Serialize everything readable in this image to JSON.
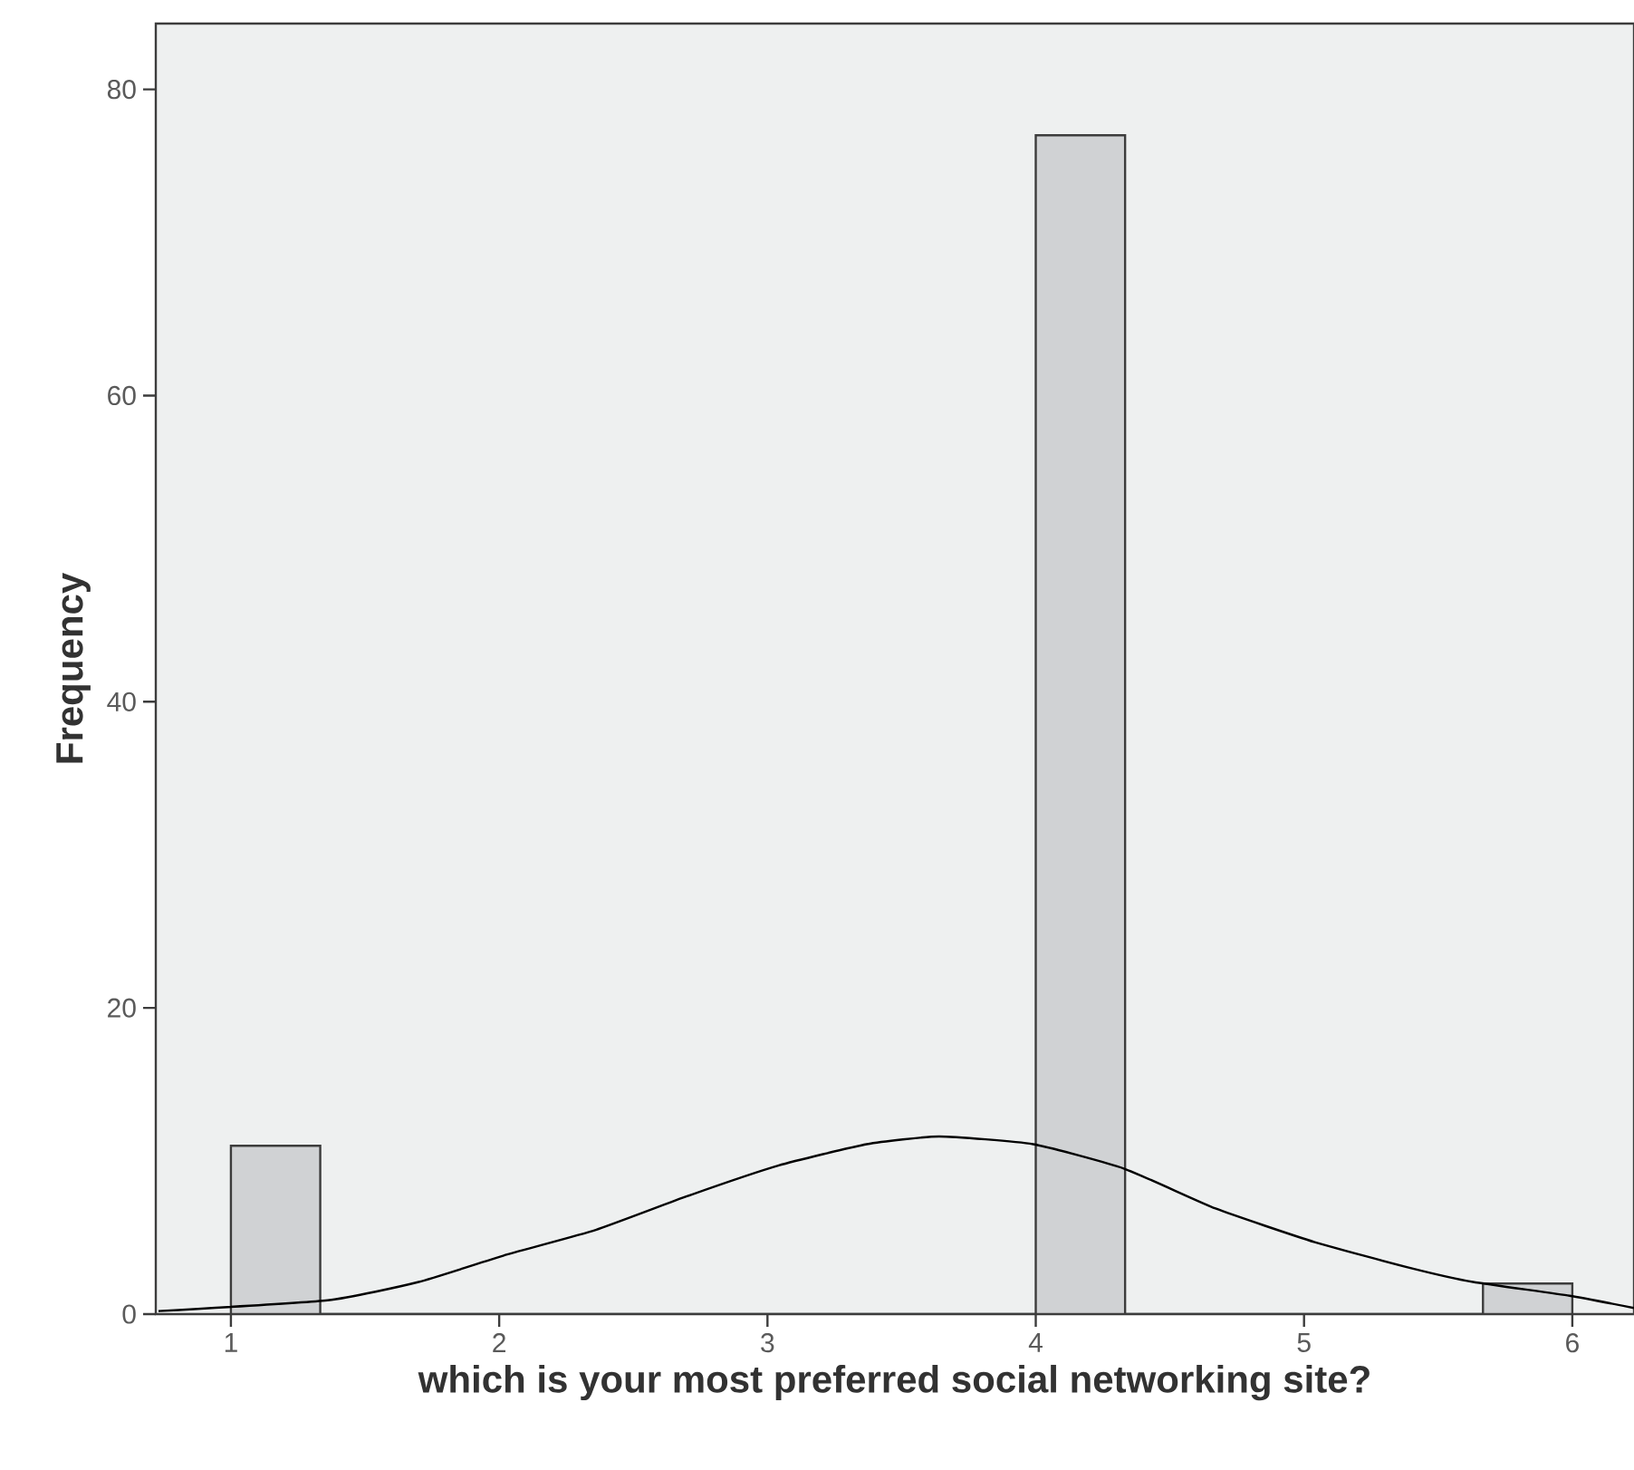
{
  "chart_data": {
    "type": "histogram",
    "xlabel": "which is your most preferred social networking site?",
    "ylabel": "Frequency",
    "bins": [
      1,
      1.333,
      1.667,
      2,
      2.333,
      2.667,
      3,
      3.333,
      3.667,
      4,
      4.333,
      4.667,
      5,
      5.333,
      5.667,
      6
    ],
    "series": [
      {
        "color": "#d0d2d4",
        "values": [
          11,
          0,
          0,
          0,
          0,
          0,
          0,
          0,
          0,
          77,
          0,
          0,
          0,
          0,
          2
        ]
      },
      {
        "type": "line",
        "color": "#000000",
        "x": [
          0.73,
          1.36,
          1.7,
          2.03,
          2.36,
          2.7,
          3.04,
          3.37,
          3.64,
          3.99,
          4.33,
          4.67,
          5.04,
          5.4,
          5.63,
          5.99,
          6.23
        ],
        "values": [
          0.2,
          0.9,
          2.1,
          3.9,
          5.5,
          7.7,
          9.7,
          11.1,
          11.6,
          11.1,
          9.5,
          6.9,
          4.7,
          3.0,
          2.1,
          1.2,
          0.4
        ]
      }
    ],
    "xlim": [
      0.72,
      6.23
    ],
    "ylim": [
      0,
      84.3
    ],
    "xticks": [
      1,
      2,
      3,
      4,
      5,
      6
    ],
    "yticks": [
      0,
      20,
      40,
      60,
      80
    ],
    "grid": false
  }
}
